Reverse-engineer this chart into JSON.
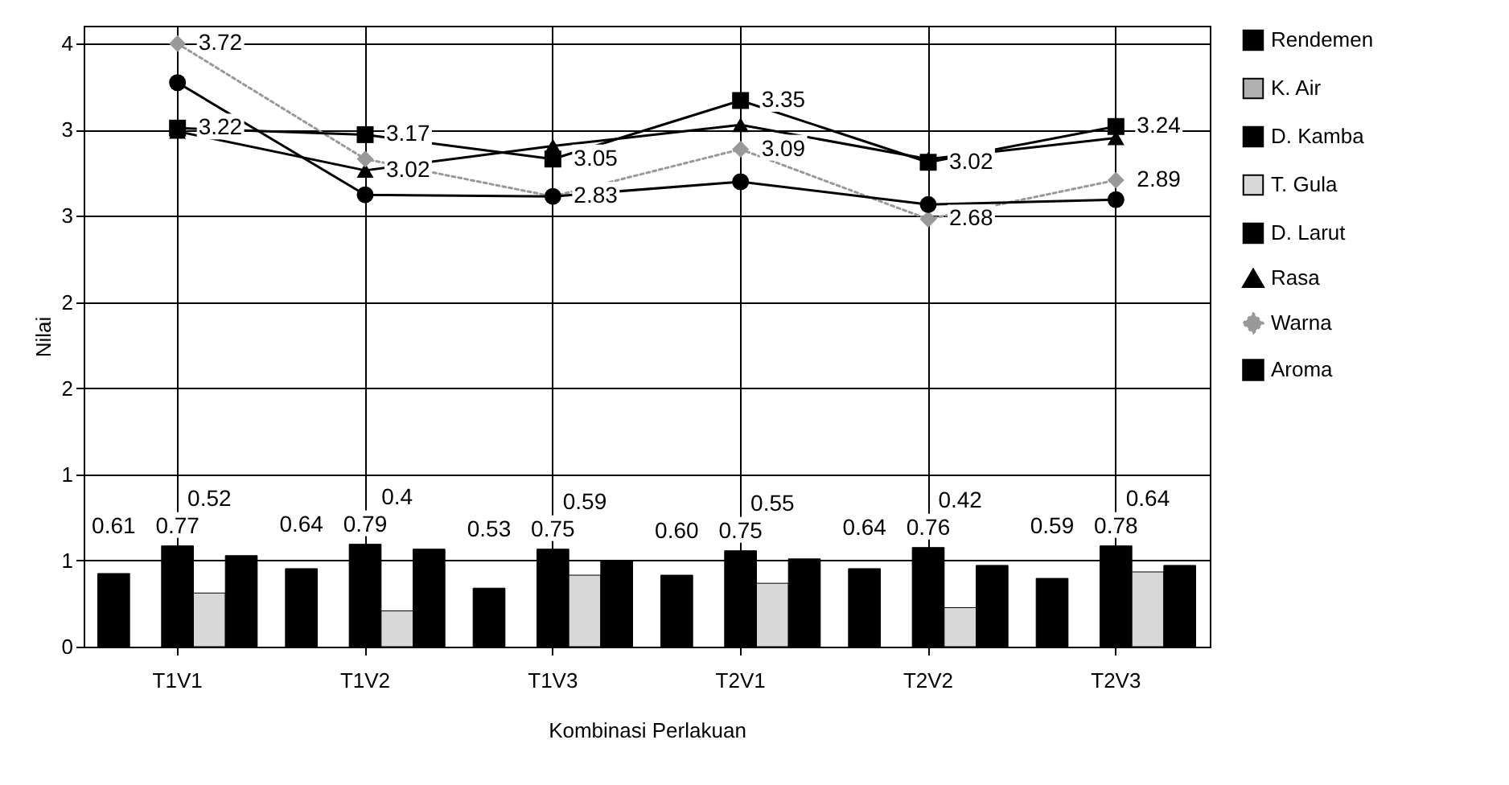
{
  "chart_data": {
    "type": "bar",
    "xlabel": "Kombinasi Perlakuan",
    "ylabel": "Nilai",
    "categories": [
      "T1V1",
      "T1V2",
      "T1V3",
      "T2V1",
      "T2V2",
      "T2V3"
    ],
    "series": [
      {
        "name": "Rendemen",
        "color": "#000000",
        "values": [
          0.45,
          0.48,
          0.36,
          0.44,
          0.48,
          0.42
        ]
      },
      {
        "name": "K. Air",
        "color": "#b0b0b0",
        "values": [
          null,
          null,
          null,
          null,
          null,
          null
        ]
      },
      {
        "name": "D. Kamba",
        "color": "#000000",
        "values": [
          0.62,
          0.63,
          0.6,
          0.59,
          0.61,
          0.62
        ]
      },
      {
        "name": "T. Gula",
        "color": "#d8d8d8",
        "values": [
          0.33,
          0.22,
          0.44,
          0.39,
          0.24,
          0.46
        ]
      },
      {
        "name": "D. Larut",
        "color": "#000000",
        "values": [
          0.56,
          0.6,
          0.53,
          0.54,
          0.5,
          0.5
        ]
      },
      {
        "name": "Rasa",
        "type": "line",
        "color": "#000000",
        "marker": "triangle",
        "line_style": "solid",
        "values": [
          3.17,
          2.93,
          3.08,
          3.21,
          3.0,
          3.13
        ]
      },
      {
        "name": "Warna",
        "type": "line",
        "color": "#999999",
        "marker": "diamond",
        "line_style": "dotted",
        "values": [
          3.71,
          3.0,
          2.77,
          3.06,
          2.63,
          2.87
        ]
      },
      {
        "name": "Aroma",
        "type": "line",
        "color": "#000000",
        "marker": "square",
        "line_style": "solid",
        "values": [
          3.19,
          3.15,
          3.0,
          3.36,
          2.98,
          3.2
        ]
      },
      {
        "type": "line",
        "color": "#000000",
        "marker": "circle",
        "line_style": "solid",
        "values": [
          3.47,
          2.78,
          2.77,
          2.86,
          2.72,
          2.75
        ]
      }
    ],
    "ylim": [
      0,
      3.82
    ],
    "yticks": [
      {
        "value": 0,
        "label": "0"
      },
      {
        "value": 0.53,
        "label": "1"
      },
      {
        "value": 1.06,
        "label": "1"
      },
      {
        "value": 1.59,
        "label": "2"
      },
      {
        "value": 2.12,
        "label": "2"
      },
      {
        "value": 2.65,
        "label": "3"
      },
      {
        "value": 3.18,
        "label": "3"
      },
      {
        "value": 3.71,
        "label": "4"
      }
    ],
    "grid": true,
    "legend": "right",
    "annotations": [
      "0.61",
      "0.77",
      "0.52",
      {
        "text": "3.72",
        "x": "T1V1",
        "y": 3.71
      },
      {
        "text": "3.22",
        "x": "T1V1",
        "y": 3.19
      },
      "0.64",
      "0.79",
      "0.4",
      {
        "text": "3.17",
        "x": "T1V2",
        "y": 3.15
      },
      {
        "text": "3.02",
        "x": "T1V2",
        "y": 2.93
      },
      "0.53",
      "0.75",
      "0.59",
      {
        "text": "3.05",
        "x": "T1V3",
        "y": 3.0
      },
      {
        "text": "2.83",
        "x": "T1V3",
        "y": 2.77
      },
      "0.60",
      "0.75",
      "0.55",
      {
        "text": "3.35",
        "x": "T2V1",
        "y": 3.36
      },
      {
        "text": "3.09",
        "x": "T2V1",
        "y": 3.06
      },
      "0.64",
      "0.76",
      "0.42",
      {
        "text": "3.02",
        "x": "T2V2",
        "y": 2.98
      },
      {
        "text": "2.68",
        "x": "T2V2",
        "y": 2.63
      },
      "0.59",
      "0.78",
      "0.64",
      {
        "text": "3.24",
        "x": "T2V3",
        "y": 3.2
      },
      {
        "text": "2.89",
        "x": "T2V3",
        "y": 2.87
      }
    ]
  }
}
